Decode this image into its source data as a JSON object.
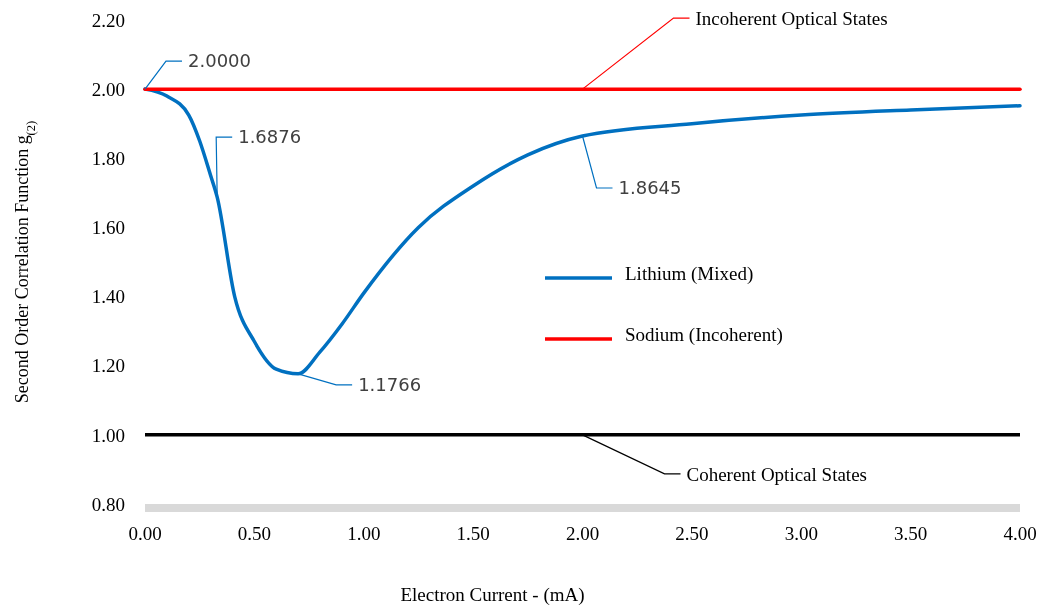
{
  "chart_data": {
    "type": "line",
    "xlabel": "Electron Current - (mA)",
    "ylabel": "Second Order Correlation Function g$_{(2)}$",
    "xlim": [
      0,
      4
    ],
    "ylim": [
      0.8,
      2.2
    ],
    "xticks": [
      {
        "value": 0,
        "label": "0.00"
      },
      {
        "value": 0.5,
        "label": "0.50"
      },
      {
        "value": 1,
        "label": "1.00"
      },
      {
        "value": 1.5,
        "label": "1.50"
      },
      {
        "value": 2,
        "label": "2.00"
      },
      {
        "value": 2.5,
        "label": "2.50"
      },
      {
        "value": 3,
        "label": "3.00"
      },
      {
        "value": 3.5,
        "label": "3.50"
      },
      {
        "value": 4,
        "label": "4.00"
      }
    ],
    "yticks": [
      {
        "value": 0.8,
        "label": "0.80"
      },
      {
        "value": 1,
        "label": "1.00"
      },
      {
        "value": 1.2,
        "label": "1.20"
      },
      {
        "value": 1.4,
        "label": "1.40"
      },
      {
        "value": 1.6,
        "label": "1.60"
      },
      {
        "value": 1.8,
        "label": "1.80"
      },
      {
        "value": 2,
        "label": "2.00"
      },
      {
        "value": 2.2,
        "label": "2.20"
      }
    ],
    "series": [
      {
        "name": "Lithium (Mixed)",
        "color": "#0070c0",
        "x": [
          0,
          0.1,
          0.2,
          0.25,
          0.3,
          0.33,
          0.41,
          0.5,
          0.6,
          0.7,
          0.8,
          0.9,
          1,
          1.25,
          1.5,
          1.75,
          2,
          2.5,
          3,
          3.5,
          4
        ],
        "values": [
          2,
          1.98,
          1.925,
          1.85,
          1.75,
          1.6876,
          1.4,
          1.27,
          1.19,
          1.1766,
          1.24,
          1.32,
          1.41,
          1.6,
          1.72,
          1.81,
          1.8645,
          1.9,
          1.925,
          1.94,
          1.952
        ]
      },
      {
        "name": "Sodium (Incoherent)",
        "color": "#ff0000",
        "x": [
          0,
          4
        ],
        "values": [
          2,
          2
        ]
      }
    ],
    "ref_lines": [
      {
        "axis": "y",
        "value": 1,
        "color": "#000000"
      }
    ],
    "annotations": [
      {
        "text": "2.0000",
        "x": 0,
        "y": 2
      },
      {
        "text": "1.6876",
        "x": 0.33,
        "y": 1.6876
      },
      {
        "text": "1.1766",
        "x": 0.7,
        "y": 1.1766
      },
      {
        "text": "1.8645",
        "x": 2,
        "y": 1.8645
      },
      {
        "text": "Incoherent Optical States",
        "x": 2,
        "y": 2
      },
      {
        "text": "Coherent Optical States",
        "x": 2,
        "y": 1
      }
    ],
    "legend": "center",
    "grid": false,
    "marker": "none",
    "line_style": "solid"
  }
}
